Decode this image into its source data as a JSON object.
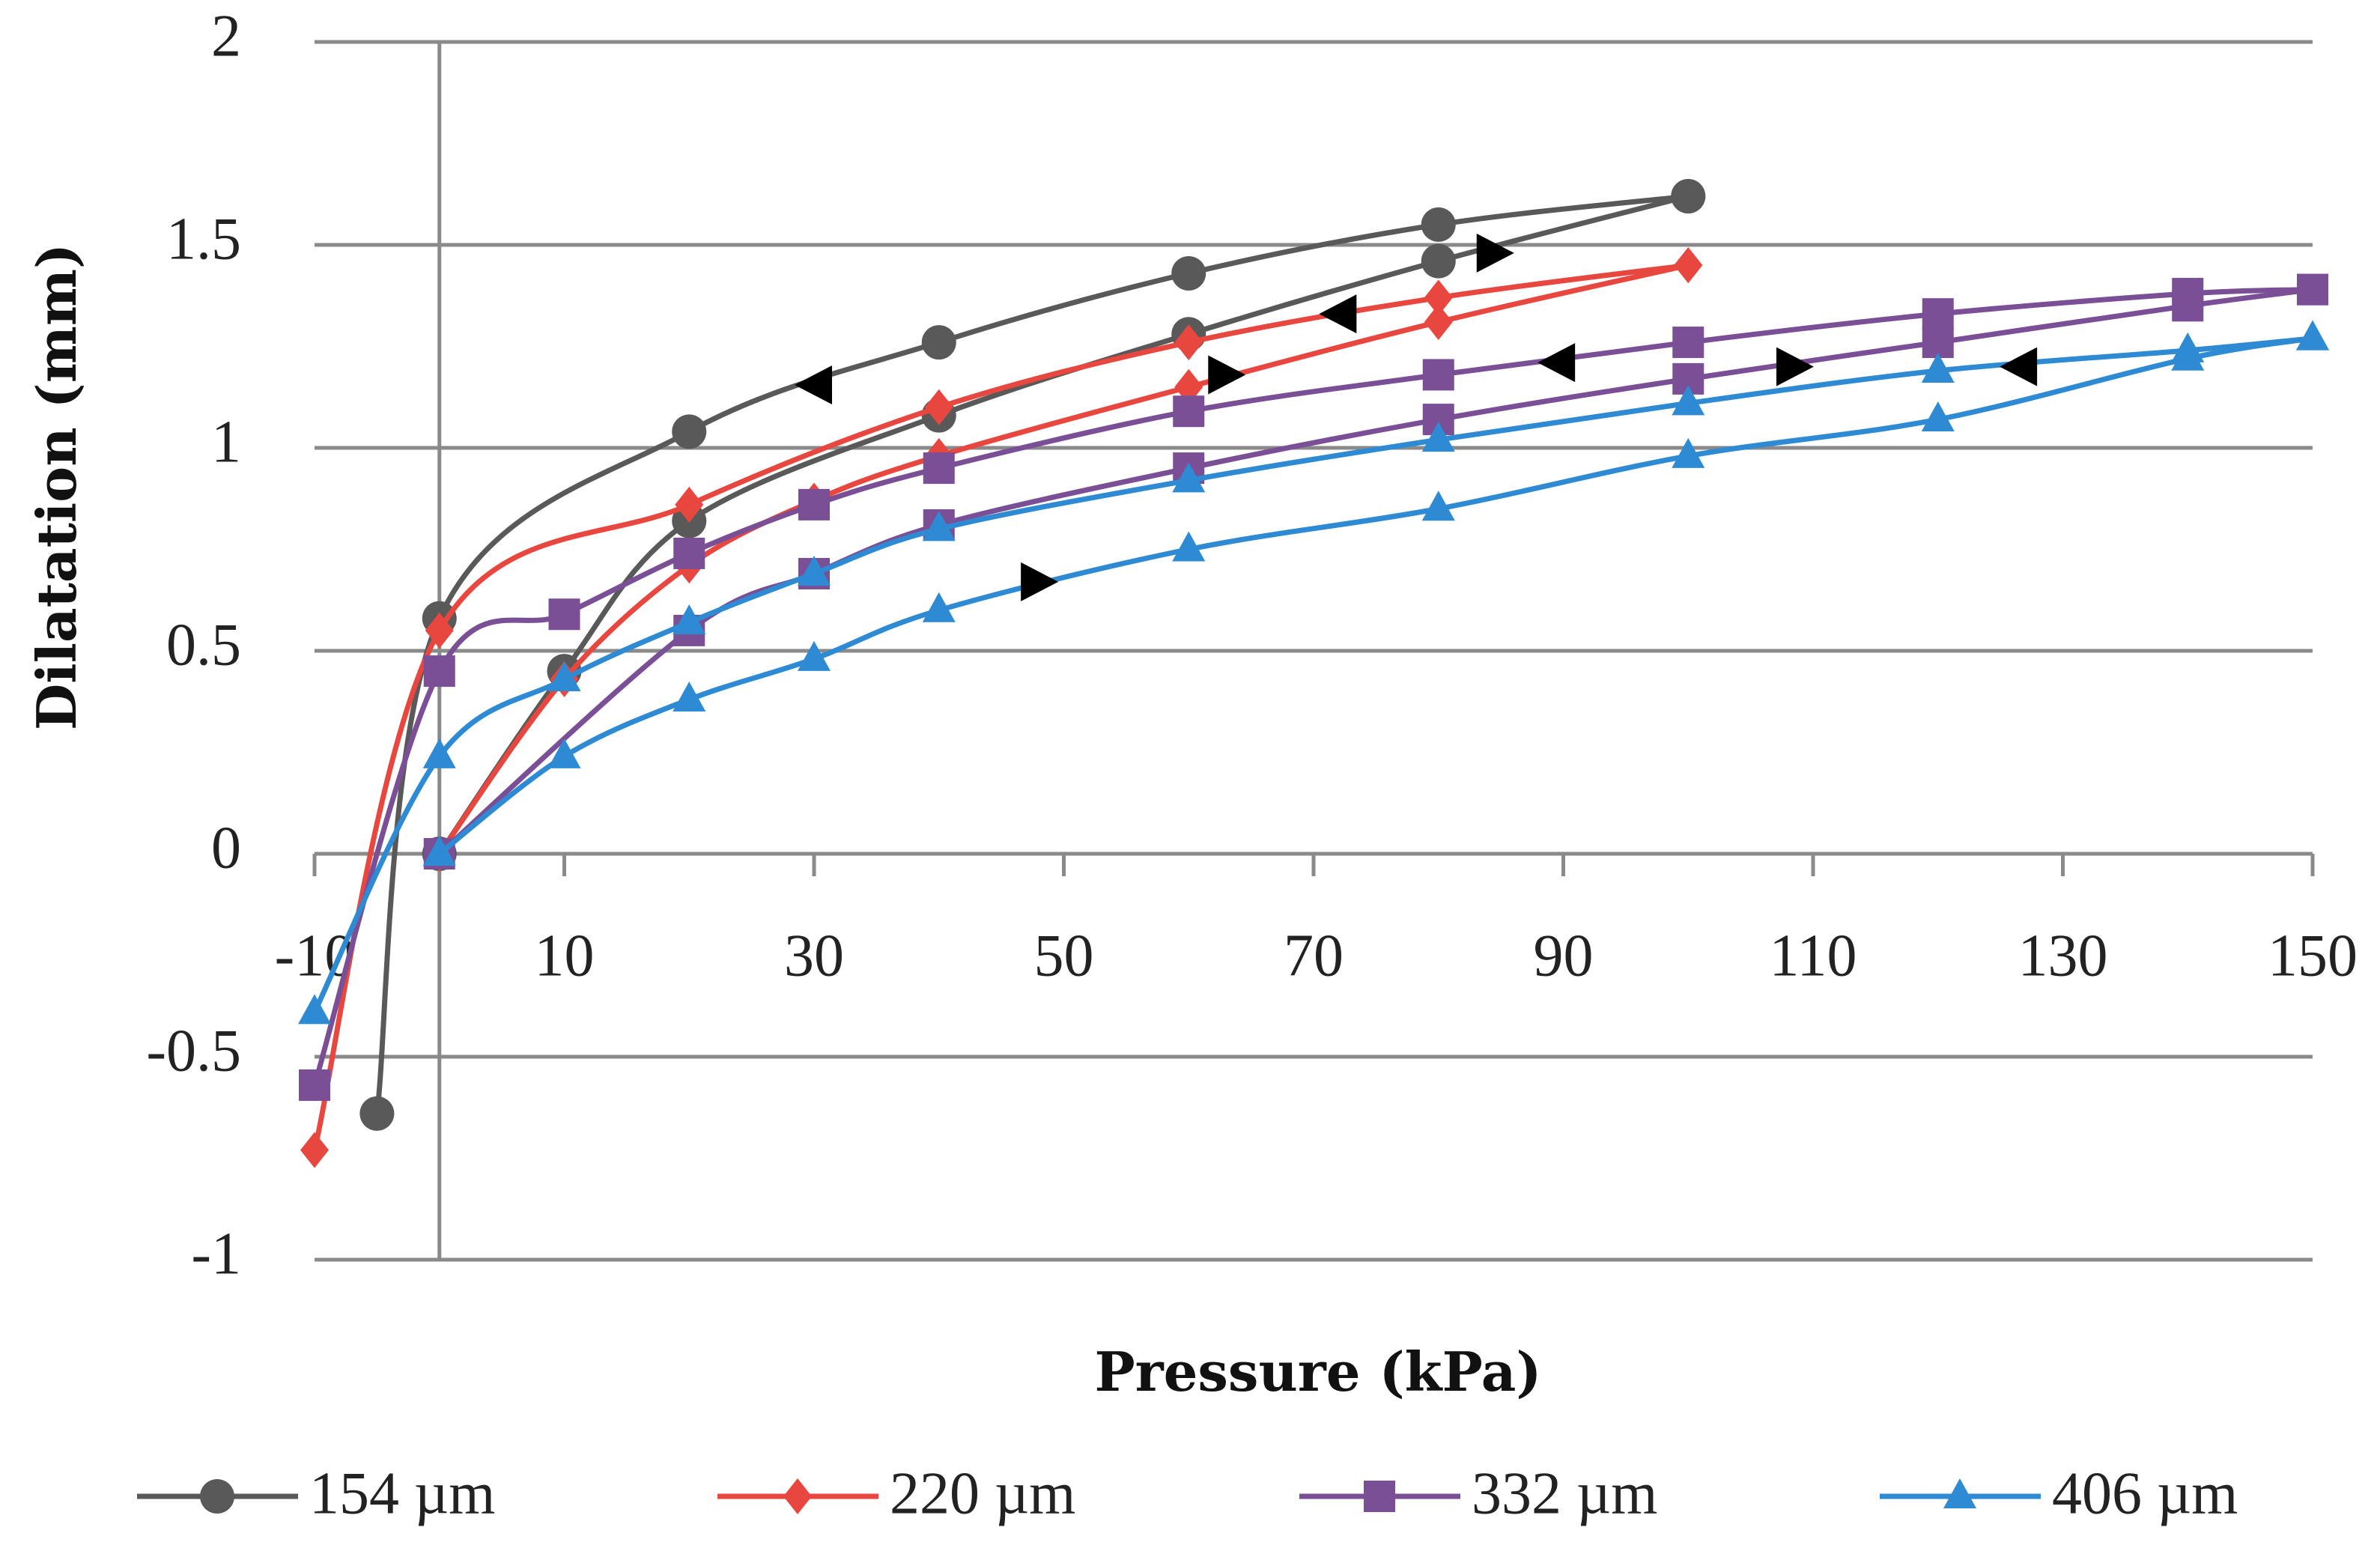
{
  "chart_data": {
    "type": "line",
    "xlabel": "Pressure (kPa)",
    "ylabel": "Dilatation (mm)",
    "xlim": [
      -10,
      150
    ],
    "ylim": [
      -1,
      2
    ],
    "x_ticks": [
      -10,
      10,
      30,
      50,
      70,
      90,
      110,
      130,
      150
    ],
    "y_ticks": [
      -1,
      -0.5,
      0,
      0.5,
      1,
      1.5,
      2
    ],
    "x_tick_labels": [
      "-10",
      "10",
      "30",
      "50",
      "70",
      "90",
      "110",
      "130",
      "150"
    ],
    "y_tick_labels": [
      "-1",
      "-0.5",
      "0",
      "0.5",
      "1",
      "1.5",
      "2"
    ],
    "grid": "horizontal",
    "legend_position": "bottom",
    "series": [
      {
        "name": "154 µm",
        "color": "#595959",
        "marker": "circle",
        "loading": [
          [
            0,
            0
          ],
          [
            10,
            0.45
          ],
          [
            20,
            0.82
          ],
          [
            40,
            1.08
          ],
          [
            60,
            1.28
          ],
          [
            80,
            1.46
          ],
          [
            100,
            1.62
          ]
        ],
        "unloading": [
          [
            100,
            1.62
          ],
          [
            80,
            1.55
          ],
          [
            60,
            1.43
          ],
          [
            40,
            1.26
          ],
          [
            20,
            1.04
          ],
          [
            0,
            0.58
          ],
          [
            -5,
            -0.64
          ]
        ]
      },
      {
        "name": "220 µm",
        "color": "#e8473f",
        "marker": "diamond",
        "loading": [
          [
            0,
            0
          ],
          [
            10,
            0.43
          ],
          [
            20,
            0.71
          ],
          [
            30,
            0.87
          ],
          [
            40,
            0.98
          ],
          [
            60,
            1.15
          ],
          [
            80,
            1.31
          ],
          [
            100,
            1.45
          ]
        ],
        "unloading": [
          [
            100,
            1.45
          ],
          [
            80,
            1.37
          ],
          [
            60,
            1.26
          ],
          [
            40,
            1.1
          ],
          [
            20,
            0.86
          ],
          [
            0,
            0.55
          ],
          [
            -10,
            -0.73
          ]
        ]
      },
      {
        "name": "332 µm",
        "color": "#7a4f96",
        "marker": "square",
        "loading": [
          [
            0,
            0
          ],
          [
            20,
            0.55
          ],
          [
            30,
            0.69
          ],
          [
            40,
            0.81
          ],
          [
            60,
            0.95
          ],
          [
            80,
            1.07
          ],
          [
            100,
            1.17
          ],
          [
            120,
            1.26
          ],
          [
            140,
            1.35
          ],
          [
            150,
            1.39
          ]
        ],
        "unloading": [
          [
            150,
            1.39
          ],
          [
            140,
            1.38
          ],
          [
            120,
            1.33
          ],
          [
            100,
            1.26
          ],
          [
            80,
            1.18
          ],
          [
            60,
            1.09
          ],
          [
            40,
            0.95
          ],
          [
            30,
            0.86
          ],
          [
            20,
            0.74
          ],
          [
            10,
            0.59
          ],
          [
            0,
            0.45
          ],
          [
            -10,
            -0.57
          ]
        ]
      },
      {
        "name": "406 µm",
        "color": "#2e8bd3",
        "marker": "triangle",
        "loading": [
          [
            0,
            0
          ],
          [
            10,
            0.24
          ],
          [
            20,
            0.38
          ],
          [
            30,
            0.48
          ],
          [
            40,
            0.6
          ],
          [
            60,
            0.75
          ],
          [
            80,
            0.85
          ],
          [
            100,
            0.98
          ],
          [
            120,
            1.07
          ],
          [
            140,
            1.22
          ],
          [
            150,
            1.27
          ]
        ],
        "unloading": [
          [
            150,
            1.27
          ],
          [
            140,
            1.24
          ],
          [
            120,
            1.19
          ],
          [
            100,
            1.11
          ],
          [
            80,
            1.02
          ],
          [
            60,
            0.92
          ],
          [
            40,
            0.8
          ],
          [
            30,
            0.69
          ],
          [
            20,
            0.57
          ],
          [
            10,
            0.43
          ],
          [
            0,
            0.24
          ],
          [
            -10,
            -0.39
          ]
        ]
      }
    ],
    "arrows": [
      {
        "x": 30,
        "y": 1.155,
        "direction": "left"
      },
      {
        "x": 84.5,
        "y": 1.48,
        "direction": "right"
      },
      {
        "x": 72,
        "y": 1.33,
        "direction": "left"
      },
      {
        "x": 63,
        "y": 1.18,
        "direction": "right"
      },
      {
        "x": 89.5,
        "y": 1.21,
        "direction": "left"
      },
      {
        "x": 108.5,
        "y": 1.2,
        "direction": "right"
      },
      {
        "x": 126.5,
        "y": 1.2,
        "direction": "left"
      },
      {
        "x": 48,
        "y": 0.67,
        "direction": "right"
      }
    ]
  }
}
